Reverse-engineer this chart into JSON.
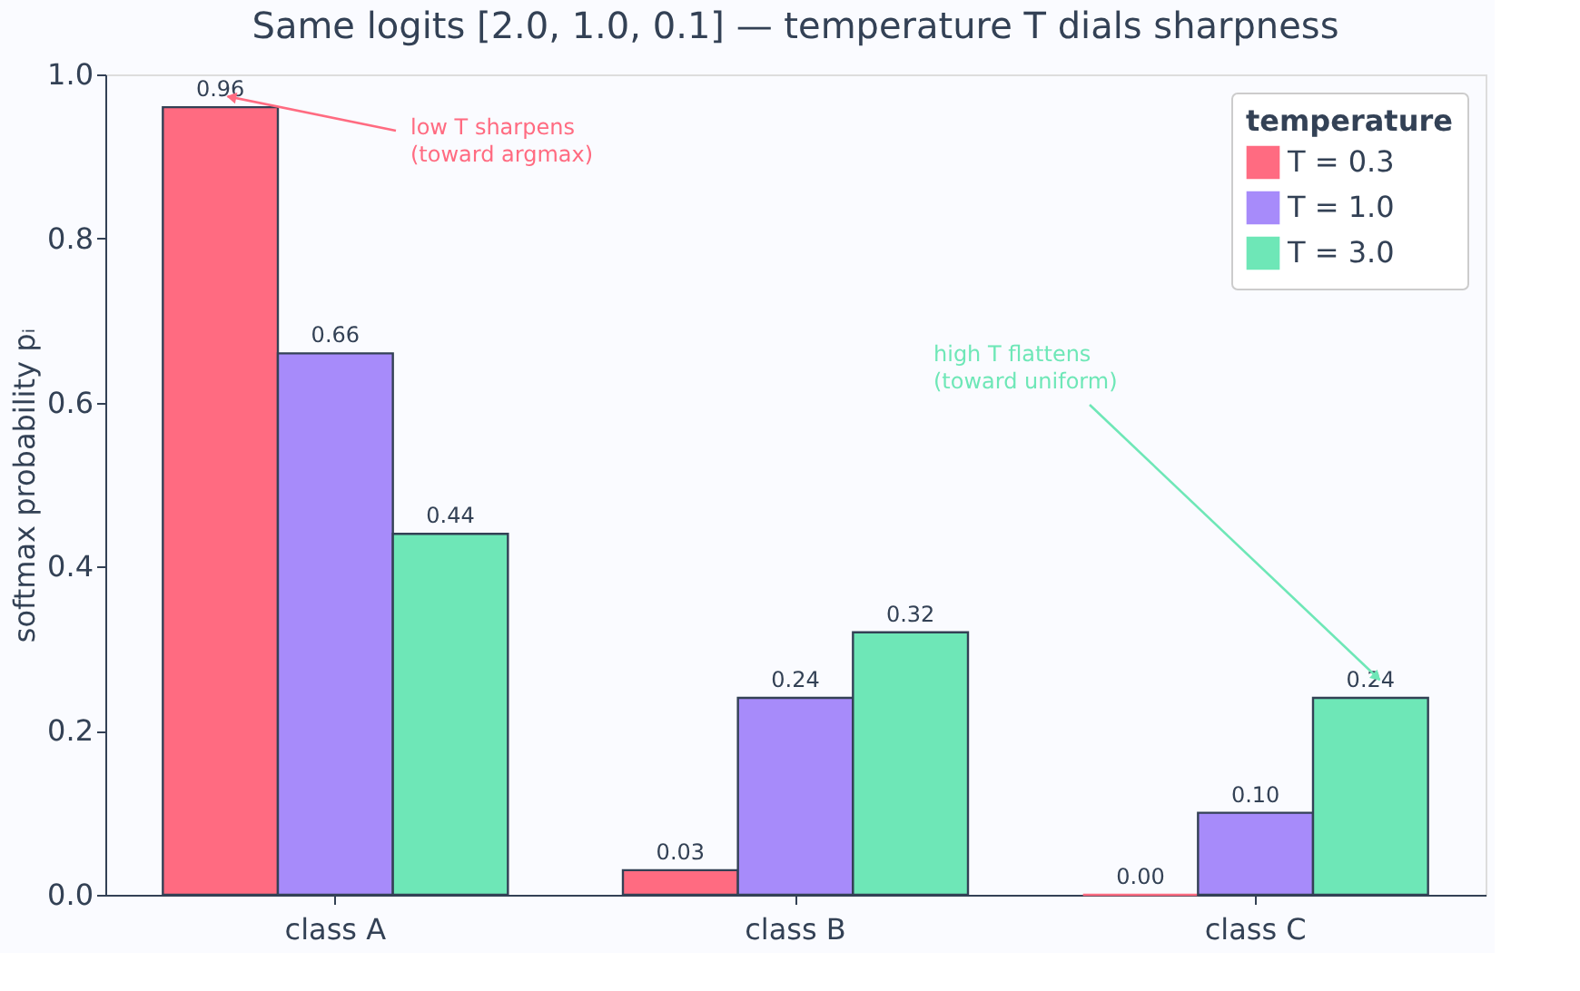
{
  "chart_data": {
    "type": "bar",
    "title": "Same logits [2.0, 1.0, 0.1] — temperature T dials sharpness",
    "categories": [
      "class A",
      "class B",
      "class C"
    ],
    "series": [
      {
        "name": "T = 0.3",
        "color": "#ff6b81",
        "values": [
          0.96,
          0.03,
          0.0
        ],
        "value_labels": [
          "0.96",
          "0.03",
          "0.00"
        ]
      },
      {
        "name": "T = 1.0",
        "color": "#a78bfa",
        "values": [
          0.66,
          0.24,
          0.1
        ],
        "value_labels": [
          "0.66",
          "0.24",
          "0.10"
        ]
      },
      {
        "name": "T = 3.0",
        "color": "#6ee7b7",
        "values": [
          0.44,
          0.32,
          0.24
        ],
        "value_labels": [
          "0.44",
          "0.32",
          "0.24"
        ]
      }
    ],
    "ylabel": "softmax probability  pᵢ",
    "legend_title": "temperature",
    "ylim": [
      0,
      1.0
    ],
    "yticks": [
      {
        "value": 0,
        "label": "0.0"
      },
      0.2,
      0.4,
      0.6,
      0.8,
      {
        "value": 1,
        "label": "1.0"
      }
    ],
    "grid": false,
    "legend": "top right",
    "annotations": [
      "low T sharpens\n(toward argmax)",
      "high T flattens\n(toward uniform)"
    ]
  }
}
